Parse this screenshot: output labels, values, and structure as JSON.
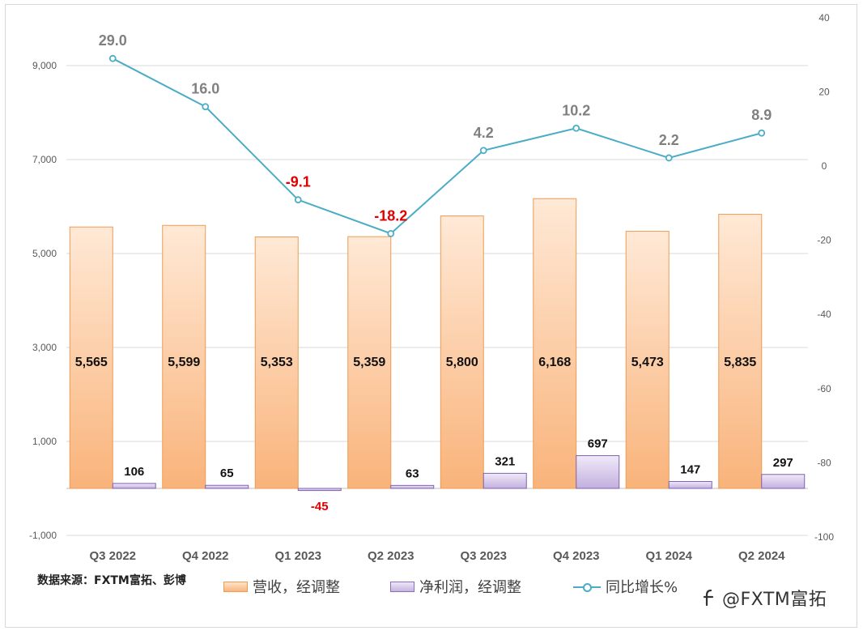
{
  "chart_data": {
    "type": "bar",
    "categories": [
      "Q3 2022",
      "Q4 2022",
      "Q1 2023",
      "Q2 2023",
      "Q3 2023",
      "Q4 2023",
      "Q1 2024",
      "Q2 2024"
    ],
    "series": [
      {
        "name": "营收，经调整",
        "type": "bar",
        "axis": "left",
        "values": [
          5565,
          5599,
          5353,
          5359,
          5800,
          6168,
          5473,
          5835
        ],
        "labels": [
          "5,565",
          "5,599",
          "5,353",
          "5,359",
          "5,800",
          "6,168",
          "5,473",
          "5,835"
        ]
      },
      {
        "name": "净利润，经调整",
        "type": "bar",
        "axis": "left",
        "values": [
          106,
          65,
          -45,
          63,
          321,
          697,
          147,
          297
        ],
        "labels": [
          "106",
          "65",
          "-45",
          "63",
          "321",
          "697",
          "147",
          "297"
        ]
      },
      {
        "name": "同比增长%",
        "type": "line",
        "axis": "right",
        "values": [
          29.0,
          16.0,
          -9.1,
          -18.2,
          4.2,
          10.2,
          2.2,
          8.9
        ],
        "labels": [
          "29.0",
          "16.0",
          "-9.1",
          "-18.2",
          "4.2",
          "10.2",
          "2.2",
          "8.9"
        ]
      }
    ],
    "y_left": {
      "range": [
        -1000,
        10000
      ],
      "ticks": [
        "-1,000",
        "1,000",
        "3,000",
        "5,000",
        "7,000",
        "9,000"
      ],
      "tick_values": [
        -1000,
        1000,
        3000,
        5000,
        7000,
        9000
      ]
    },
    "y_right": {
      "range": [
        -100,
        40
      ],
      "ticks": [
        "-100",
        "-80",
        "-60",
        "-40",
        "-20",
        "0",
        "20",
        "40"
      ],
      "tick_values": [
        -100,
        -80,
        -60,
        -40,
        -20,
        0,
        20,
        40
      ]
    },
    "grid": true,
    "legend_position": "bottom",
    "colors": {
      "revenue_fill_top": "#ffe8d3",
      "revenue_fill_bottom": "#f9b47a",
      "revenue_border": "#ed9b55",
      "profit_fill_top": "#f0e9f8",
      "profit_fill_bottom": "#c3b1df",
      "profit_border": "#7f63ad",
      "line": "#4bacc6",
      "line_label": "#808080",
      "negative_label": "#e00000"
    }
  },
  "legend": {
    "revenue": "营收，经调整",
    "profit": "净利润，经调整",
    "growth": "同比增长%"
  },
  "source_note": "数据来源：FXTM富拓、彭博",
  "watermark": "@FXTM富拓"
}
